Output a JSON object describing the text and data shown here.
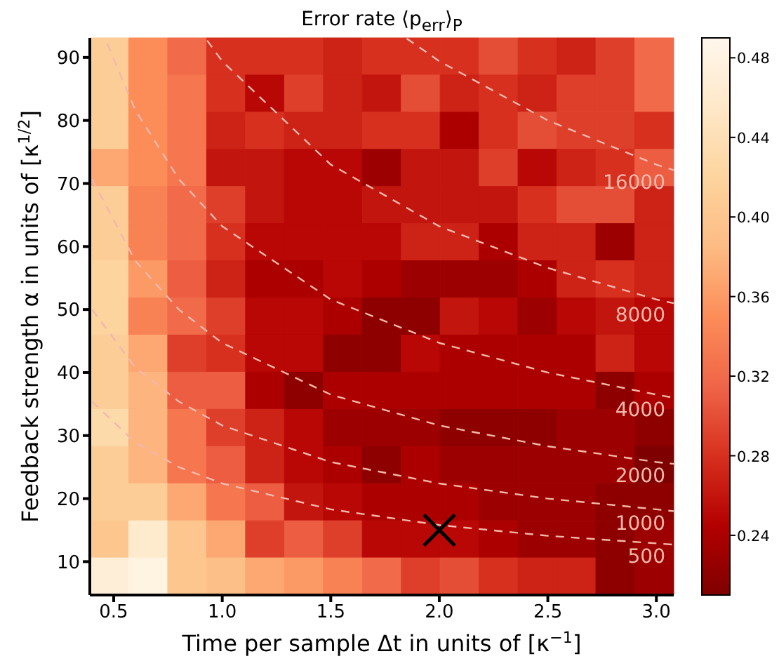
{
  "chart_data": {
    "type": "heatmap",
    "title": "Error rate ⟨p$_{err}$⟩$_{P}$",
    "xlabel": "Time per sample Δt in units of [κ$^{−1}$]",
    "ylabel": "Feedback strength α in units of [κ$^{1/2}$]",
    "xlim": [
      0.39,
      3.08
    ],
    "xticks": [
      0.5,
      {
        "value": 1,
        "label": "1.0"
      },
      1.5,
      {
        "value": 2,
        "label": "2.0"
      },
      2.5,
      {
        "value": 3,
        "label": "3.0"
      }
    ],
    "ylim": [
      4.7,
      93.1
    ],
    "yticks": [
      10,
      20,
      30,
      40,
      50,
      60,
      70,
      80,
      90
    ],
    "clim": [
      0.21,
      0.49
    ],
    "cticks": [
      0.24,
      0.28,
      0.32,
      0.36,
      {
        "value": 0.4,
        "label": "0.40"
      },
      0.44,
      0.48
    ],
    "cells": [
      [
        0.41,
        0.35,
        0.32,
        0.28,
        0.28,
        0.28,
        0.27,
        0.28,
        0.28,
        0.28,
        0.3,
        0.28,
        0.27,
        0.29,
        0.32
      ],
      [
        0.41,
        0.35,
        0.33,
        0.28,
        0.25,
        0.29,
        0.27,
        0.26,
        0.3,
        0.27,
        0.28,
        0.27,
        0.29,
        0.29,
        0.32
      ],
      [
        0.41,
        0.35,
        0.33,
        0.27,
        0.28,
        0.27,
        0.27,
        0.28,
        0.28,
        0.24,
        0.28,
        0.3,
        0.29,
        0.29,
        0.28
      ],
      [
        0.37,
        0.35,
        0.33,
        0.26,
        0.26,
        0.25,
        0.25,
        0.23,
        0.26,
        0.26,
        0.29,
        0.25,
        0.27,
        0.28,
        0.31
      ],
      [
        0.41,
        0.34,
        0.32,
        0.29,
        0.26,
        0.25,
        0.25,
        0.26,
        0.26,
        0.26,
        0.26,
        0.28,
        0.3,
        0.3,
        0.27
      ],
      [
        0.41,
        0.34,
        0.32,
        0.28,
        0.25,
        0.25,
        0.25,
        0.25,
        0.27,
        0.27,
        0.24,
        0.27,
        0.27,
        0.23,
        0.27
      ],
      [
        0.42,
        0.36,
        0.31,
        0.27,
        0.24,
        0.24,
        0.25,
        0.24,
        0.23,
        0.23,
        0.23,
        0.24,
        0.27,
        0.28,
        0.27
      ],
      [
        0.42,
        0.34,
        0.32,
        0.29,
        0.25,
        0.25,
        0.24,
        0.22,
        0.22,
        0.26,
        0.25,
        0.23,
        0.25,
        0.26,
        0.25
      ],
      [
        0.41,
        0.37,
        0.29,
        0.28,
        0.25,
        0.25,
        0.22,
        0.22,
        0.25,
        0.24,
        0.24,
        0.24,
        0.24,
        0.27,
        0.25
      ],
      [
        0.41,
        0.38,
        0.31,
        0.31,
        0.24,
        0.22,
        0.24,
        0.24,
        0.24,
        0.24,
        0.24,
        0.24,
        0.24,
        0.22,
        0.24
      ],
      [
        0.43,
        0.38,
        0.33,
        0.29,
        0.27,
        0.25,
        0.23,
        0.23,
        0.23,
        0.22,
        0.22,
        0.22,
        0.23,
        0.23,
        0.22
      ],
      [
        0.41,
        0.38,
        0.33,
        0.31,
        0.27,
        0.25,
        0.24,
        0.22,
        0.24,
        0.23,
        0.23,
        0.23,
        0.23,
        0.23,
        0.21
      ],
      [
        0.41,
        0.41,
        0.37,
        0.33,
        0.31,
        0.26,
        0.25,
        0.24,
        0.24,
        0.24,
        0.23,
        0.23,
        0.23,
        0.22,
        0.22
      ],
      [
        0.4,
        0.46,
        0.4,
        0.37,
        0.29,
        0.31,
        0.29,
        0.25,
        0.25,
        0.25,
        0.24,
        0.23,
        0.23,
        0.22,
        0.23
      ],
      [
        0.47,
        0.48,
        0.4,
        0.39,
        0.37,
        0.36,
        0.34,
        0.32,
        0.29,
        0.3,
        0.28,
        0.27,
        0.27,
        0.22,
        0.23
      ]
    ],
    "series": [
      {
        "type": "line",
        "name": "500",
        "color": "#f2b8ac",
        "line_style": "dashed",
        "x": [
          0.4,
          0.6,
          0.8,
          1.0,
          1.5,
          2.0,
          2.5,
          3.0,
          3.08
        ],
        "values": [
          35.4,
          28.9,
          25.0,
          22.4,
          18.3,
          15.8,
          14.1,
          12.9,
          12.7
        ]
      },
      {
        "type": "line",
        "name": "1000",
        "color": "#f2b8ac",
        "line_style": "dashed",
        "x": [
          0.4,
          0.6,
          0.8,
          1.0,
          1.5,
          2.0,
          2.5,
          3.0,
          3.08
        ],
        "values": [
          50.0,
          40.8,
          35.4,
          31.6,
          25.8,
          22.4,
          20.0,
          18.3,
          18.0
        ]
      },
      {
        "type": "line",
        "name": "2000",
        "color": "#f2b8ac",
        "line_style": "dashed",
        "x": [
          0.4,
          0.6,
          0.8,
          1.0,
          1.5,
          2.0,
          2.5,
          3.0,
          3.08
        ],
        "values": [
          70.7,
          57.7,
          50.0,
          44.7,
          36.5,
          31.6,
          28.3,
          25.8,
          25.5
        ]
      },
      {
        "type": "line",
        "name": "4000",
        "color": "#f2b8ac",
        "line_style": "dashed",
        "x": [
          0.47,
          0.6,
          0.8,
          1.0,
          1.5,
          2.0,
          2.5,
          3.0,
          3.08
        ],
        "values": [
          92.2,
          81.6,
          70.7,
          63.2,
          51.6,
          44.7,
          40.0,
          36.5,
          36.0
        ]
      },
      {
        "type": "line",
        "name": "8000",
        "color": "#f2b8ac",
        "line_style": "dashed",
        "x": [
          0.93,
          1.0,
          1.5,
          2.0,
          2.5,
          3.0,
          3.08
        ],
        "values": [
          92.7,
          89.4,
          73.0,
          63.2,
          56.6,
          51.6,
          51.0
        ]
      },
      {
        "type": "line",
        "name": "16000",
        "color": "#f2b8ac",
        "line_style": "dashed",
        "x": [
          1.85,
          2.0,
          2.5,
          3.0,
          3.08
        ],
        "values": [
          93.0,
          89.4,
          80.0,
          73.0,
          72.1
        ]
      },
      {
        "type": "scatter",
        "color": "#000000",
        "marker": "cross",
        "x": [
          2.0
        ],
        "values": [
          15
        ]
      }
    ]
  }
}
